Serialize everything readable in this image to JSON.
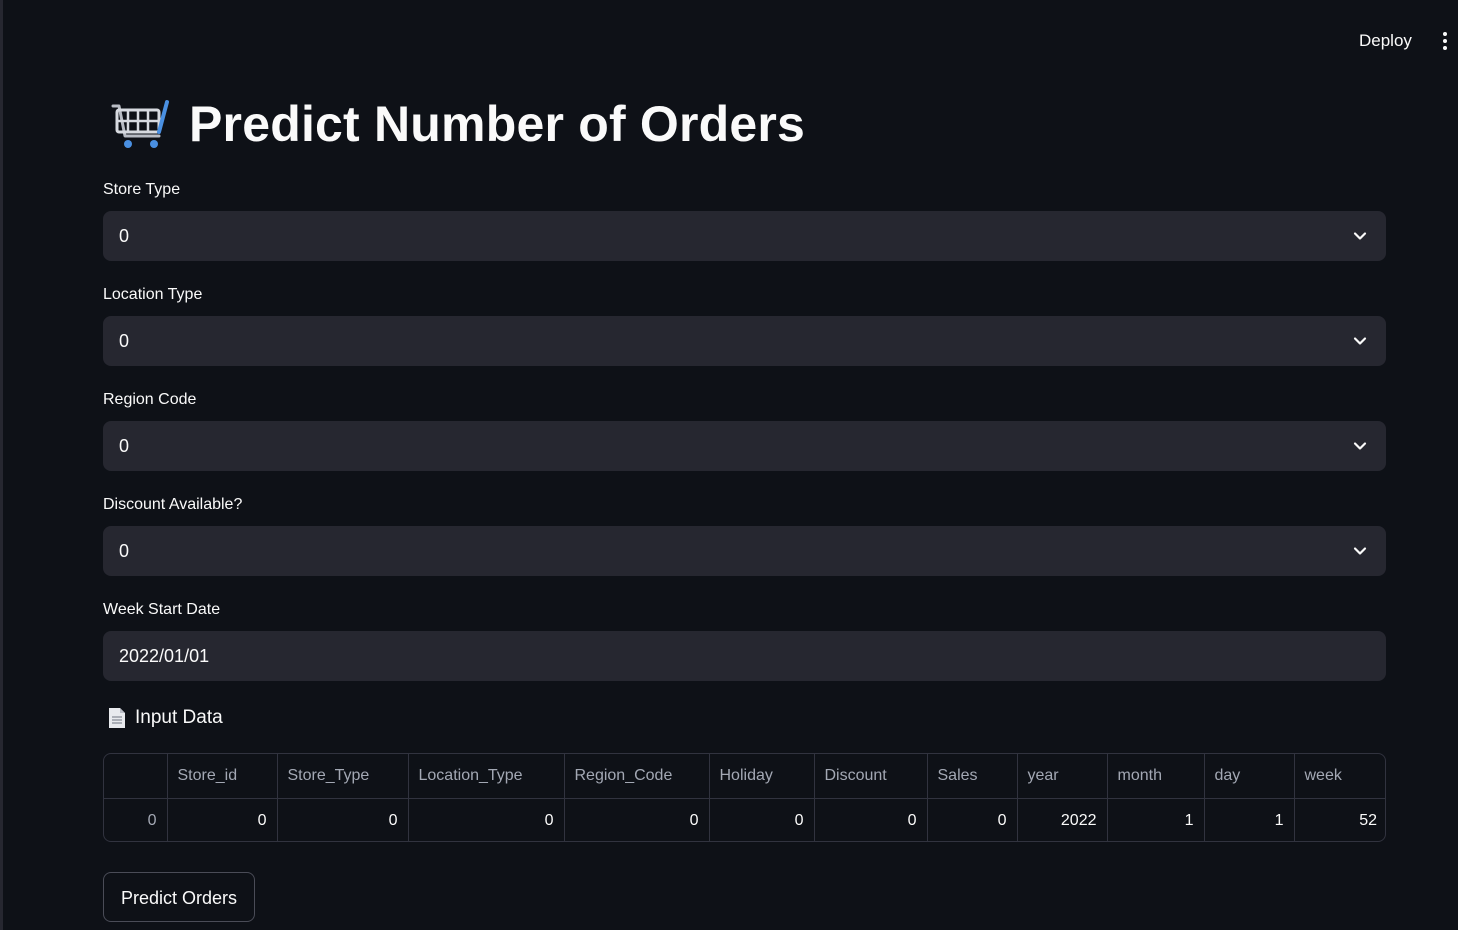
{
  "header": {
    "deploy_label": "Deploy",
    "menu_icon": "vertical-ellipsis-icon"
  },
  "title": {
    "icon": "shopping-cart-icon",
    "text": "Predict Number of Orders"
  },
  "fields": {
    "store_type": {
      "label": "Store Type",
      "value": "0"
    },
    "location_type": {
      "label": "Location Type",
      "value": "0"
    },
    "region_code": {
      "label": "Region Code",
      "value": "0"
    },
    "discount": {
      "label": "Discount Available?",
      "value": "0"
    },
    "week_start": {
      "label": "Week Start Date",
      "value": "2022/01/01"
    }
  },
  "input_data": {
    "icon": "document-icon",
    "title": "Input Data",
    "columns": [
      "",
      "Store_id",
      "Store_Type",
      "Location_Type",
      "Region_Code",
      "Holiday",
      "Discount",
      "Sales",
      "year",
      "month",
      "day",
      "week"
    ],
    "rows": [
      [
        "0",
        "0",
        "0",
        "0",
        "0",
        "0",
        "0",
        "0",
        "2022",
        "1",
        "1",
        "52"
      ]
    ]
  },
  "predict_button": {
    "label": "Predict Orders"
  },
  "colors": {
    "background": "#0e1117",
    "widget": "#262730",
    "text": "#fafafa",
    "muted": "#a3a8b4",
    "border": "#31333f"
  }
}
